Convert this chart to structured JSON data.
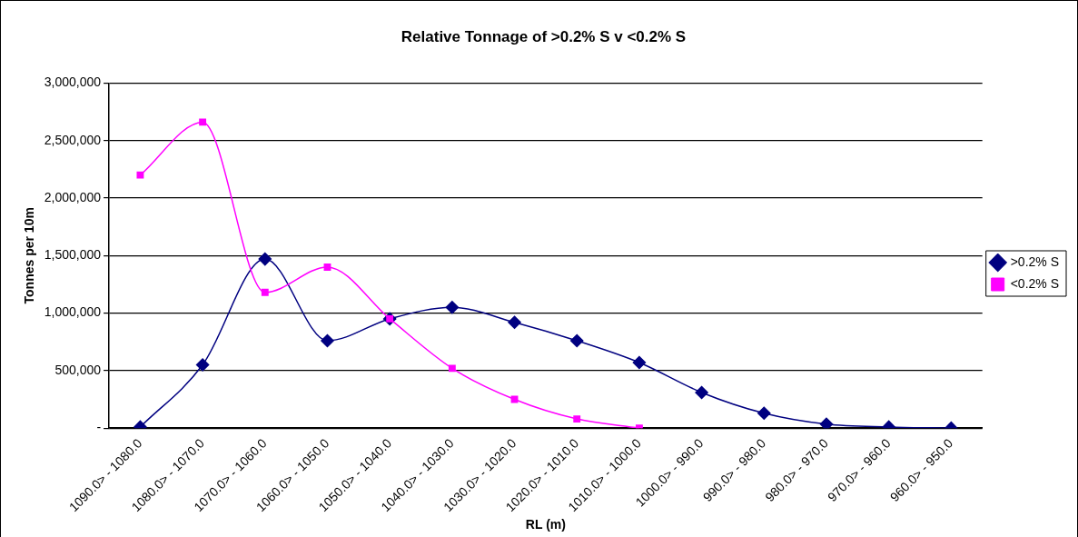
{
  "chart_data": {
    "type": "line",
    "title": "Relative Tonnage of >0.2% S v <0.2% S",
    "xlabel": "RL (m)",
    "ylabel": "Tonnes per 10m",
    "categories": [
      "1090.0> - 1080.0",
      "1080.0> - 1070.0",
      "1070.0> - 1060.0",
      "1060.0> - 1050.0",
      "1050.0> - 1040.0",
      "1040.0> - 1030.0",
      "1030.0> - 1020.0",
      "1020.0> - 1010.0",
      "1010.0> - 1000.0",
      "1000.0> - 990.0",
      "990.0> - 980.0",
      "980.0> - 970.0",
      "970.0> - 960.0",
      "960.0> - 950.0"
    ],
    "series": [
      {
        "name": ">0.2% S",
        "color": "#000080",
        "marker": "diamond",
        "values": [
          10000,
          550000,
          1470000,
          760000,
          950000,
          1050000,
          920000,
          760000,
          570000,
          310000,
          130000,
          35000,
          10000,
          0
        ]
      },
      {
        "name": "<0.2% S",
        "color": "#ff00ff",
        "marker": "square",
        "values": [
          2200000,
          2660000,
          1180000,
          1400000,
          950000,
          520000,
          250000,
          80000,
          0,
          null,
          null,
          null,
          null,
          null
        ]
      }
    ],
    "ylim": [
      0,
      3000000
    ],
    "yticks": [
      {
        "value": 0,
        "label": "-"
      },
      {
        "value": 500000,
        "label": "500,000"
      },
      {
        "value": 1000000,
        "label": "1,000,000"
      },
      {
        "value": 1500000,
        "label": "1,500,000"
      },
      {
        "value": 2000000,
        "label": "2,000,000"
      },
      {
        "value": 2500000,
        "label": "2,500,000"
      },
      {
        "value": 3000000,
        "label": "3,000,000"
      }
    ],
    "grid": "y",
    "legend": "right",
    "line_style": "solid"
  }
}
